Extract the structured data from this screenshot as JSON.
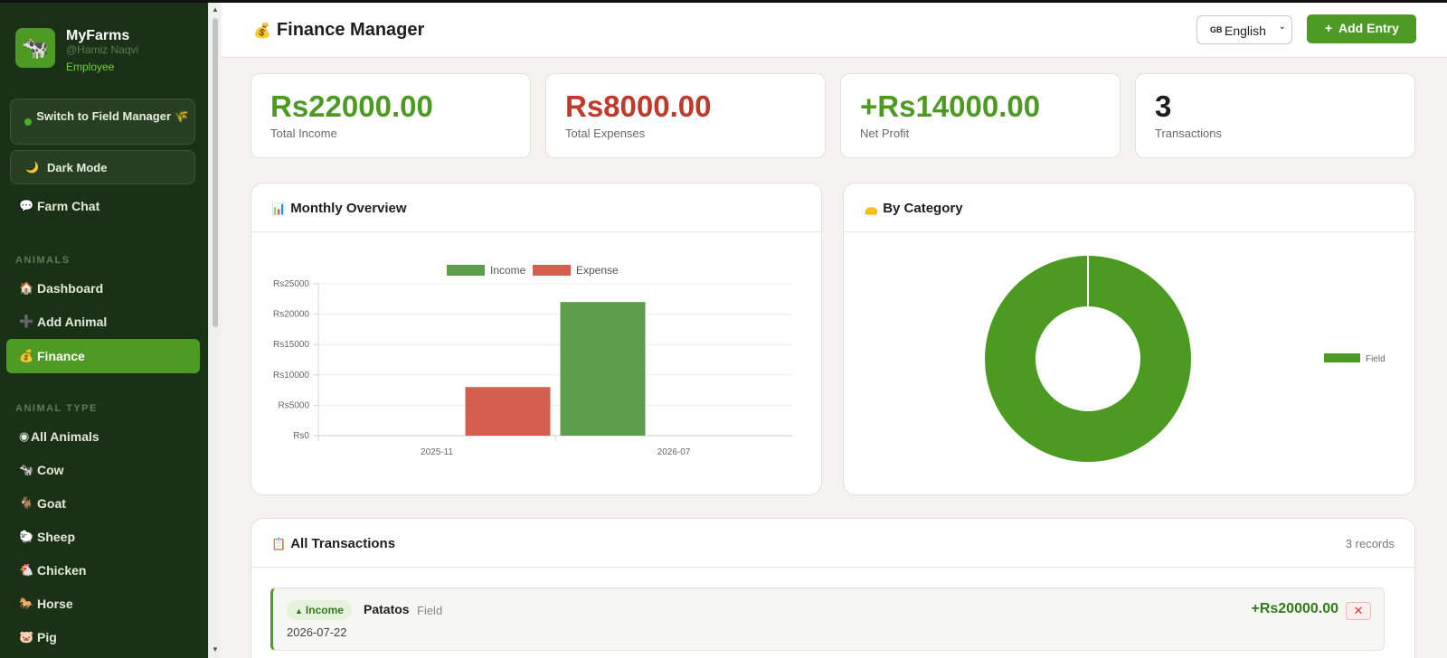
{
  "app": {
    "name": "MyFarms",
    "handle": "@Hamiz Naqvi",
    "role": "Employee",
    "logo_icon": "🐄"
  },
  "sidebar": {
    "switch_label": "Switch to Field Manager 🌾",
    "dark_mode_label": "Dark Mode",
    "dark_mode_icon": "🌙",
    "farm_chat": {
      "icon": "💬",
      "label": "Farm Chat"
    },
    "sections": {
      "animals": "ANIMALS",
      "animal_type": "ANIMAL TYPE"
    },
    "animals_items": [
      {
        "icon": "🏠",
        "label": "Dashboard"
      },
      {
        "icon": "➕",
        "label": "Add Animal"
      },
      {
        "icon": "💰",
        "label": "Finance"
      }
    ],
    "animal_type_items": [
      {
        "icon": "◉",
        "label": "All Animals"
      },
      {
        "icon": "🐄",
        "label": "Cow"
      },
      {
        "icon": "🐐",
        "label": "Goat"
      },
      {
        "icon": "🐑",
        "label": "Sheep"
      },
      {
        "icon": "🐔",
        "label": "Chicken"
      },
      {
        "icon": "🐎",
        "label": "Horse"
      },
      {
        "icon": "🐷",
        "label": "Pig"
      }
    ]
  },
  "header": {
    "title": "Finance Manager",
    "title_icon": "💰",
    "language": {
      "flag": "GB",
      "value": "English"
    },
    "add_entry_label": "Add Entry"
  },
  "stats": [
    {
      "value": "Rs22000.00",
      "label": "Total Income",
      "color": "#4c9a21"
    },
    {
      "value": "Rs8000.00",
      "label": "Total Expenses",
      "color": "#c0392b"
    },
    {
      "value": "+Rs14000.00",
      "label": "Net Profit",
      "color": "#4c9a21"
    },
    {
      "value": "3",
      "label": "Transactions",
      "color": "#1e1e1e"
    }
  ],
  "monthly": {
    "title": "Monthly Overview",
    "icon": "📊"
  },
  "category": {
    "title": "By Category",
    "icon": "👝"
  },
  "chart_data": [
    {
      "type": "bar",
      "categories": [
        "2025-11",
        "2026-07"
      ],
      "series": [
        {
          "name": "Income",
          "values": [
            0,
            22000
          ],
          "color": "#5c9e4c"
        },
        {
          "name": "Expense",
          "values": [
            8000,
            0
          ],
          "color": "#d45f4e"
        }
      ],
      "ylim": [
        0,
        25000
      ],
      "yticks": [
        "Rs0",
        "Rs5000",
        "Rs10000",
        "Rs15000",
        "Rs20000",
        "Rs25000"
      ],
      "legend_position": "top"
    },
    {
      "type": "pie",
      "categories": [
        "Field"
      ],
      "values": [
        100
      ],
      "colors": [
        "#4c9a21"
      ],
      "legend_position": "right"
    }
  ],
  "transactions": {
    "title": "All Transactions",
    "icon": "📋",
    "count_label": "3 records",
    "rows": [
      {
        "type": "Income",
        "name": "Patatos",
        "category": "Field",
        "date": "2026-07-22",
        "amount": "+Rs20000.00"
      }
    ]
  }
}
